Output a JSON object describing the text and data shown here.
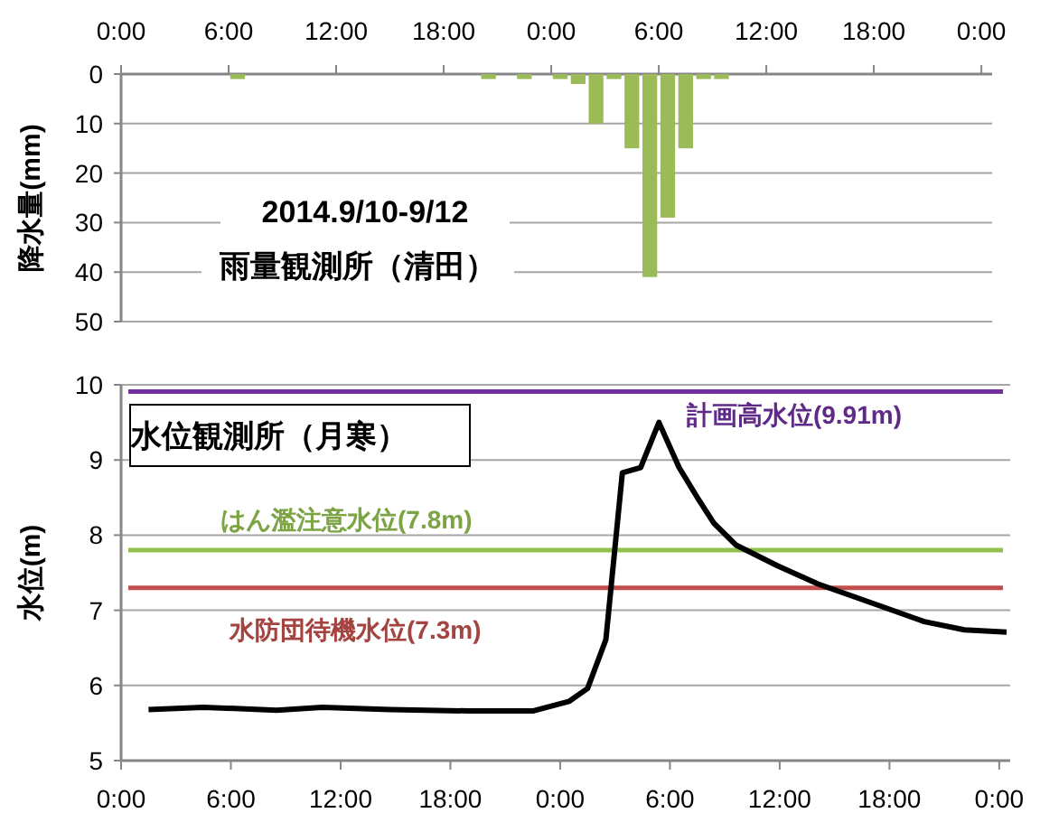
{
  "chart_data": [
    {
      "type": "bar",
      "ylabel": "降水量(mm)",
      "x": [
        "2014-09-10T06:30",
        "2014-09-10T20:30",
        "2014-09-10T22:30",
        "2014-09-11T00:30",
        "2014-09-11T01:30",
        "2014-09-11T02:30",
        "2014-09-11T03:30",
        "2014-09-11T04:30",
        "2014-09-11T05:30",
        "2014-09-11T06:30",
        "2014-09-11T07:30",
        "2014-09-11T08:30",
        "2014-09-11T09:30"
      ],
      "values": [
        1,
        1,
        1,
        1,
        2,
        10,
        1,
        15,
        41,
        29,
        15,
        1,
        1
      ],
      "color": "#9bbb59",
      "xlim": [
        "2014-09-10T00:00",
        "2014-09-12T00:36"
      ],
      "xticks": [
        {
          "value": "2014-09-10T00:00",
          "label": "0:00"
        },
        {
          "value": "2014-09-10T06:00",
          "label": "6:00"
        },
        {
          "value": "2014-09-10T12:00",
          "label": "12:00"
        },
        {
          "value": "2014-09-10T18:00",
          "label": "18:00"
        },
        {
          "value": "2014-09-11T00:00",
          "label": "0:00"
        },
        {
          "value": "2014-09-11T06:00",
          "label": "6:00"
        },
        {
          "value": "2014-09-11T12:00",
          "label": "12:00"
        },
        {
          "value": "2014-09-11T18:00",
          "label": "18:00"
        },
        {
          "value": "2014-09-12T00:00",
          "label": "0:00"
        }
      ],
      "ylim": [
        50,
        0
      ],
      "yticks": [
        0,
        10,
        20,
        30,
        40,
        50
      ],
      "grid": "y",
      "annotations": [
        "2014.9/10-9/12",
        "雨量観測所（清田）"
      ]
    },
    {
      "type": "line",
      "ylabel": "水位(m)",
      "series": [
        {
          "color": "#000000",
          "x": [
            "2014-09-10T01:30",
            "2014-09-10T04:30",
            "2014-09-10T08:30",
            "2014-09-10T11:00",
            "2014-09-10T14:42",
            "2014-09-10T19:06",
            "2014-09-10T22:30",
            "2014-09-11T00:30",
            "2014-09-11T01:30",
            "2014-09-11T02:30",
            "2014-09-11T03:24",
            "2014-09-11T04:24",
            "2014-09-11T05:24",
            "2014-09-11T06:30",
            "2014-09-11T07:30",
            "2014-09-11T08:24",
            "2014-09-11T09:36",
            "2014-09-11T11:54",
            "2014-09-11T14:06",
            "2014-09-11T17:00",
            "2014-09-11T19:54",
            "2014-09-11T22:06",
            "2014-09-12T00:24"
          ],
          "values": [
            5.68,
            5.71,
            5.67,
            5.71,
            5.68,
            5.66,
            5.66,
            5.79,
            5.96,
            6.61,
            8.83,
            8.9,
            9.5,
            8.9,
            8.5,
            8.16,
            7.87,
            7.59,
            7.35,
            7.1,
            6.85,
            6.74,
            6.71
          ]
        }
      ],
      "xlim": [
        "2014-09-10T00:00",
        "2014-09-12T00:36"
      ],
      "xticks": [
        {
          "value": "2014-09-10T00:00",
          "label": "0:00"
        },
        {
          "value": "2014-09-10T06:00",
          "label": "6:00"
        },
        {
          "value": "2014-09-10T12:00",
          "label": "12:00"
        },
        {
          "value": "2014-09-10T18:00",
          "label": "18:00"
        },
        {
          "value": "2014-09-11T00:00",
          "label": "0:00"
        },
        {
          "value": "2014-09-11T06:00",
          "label": "6:00"
        },
        {
          "value": "2014-09-11T12:00",
          "label": "12:00"
        },
        {
          "value": "2014-09-11T18:00",
          "label": "18:00"
        },
        {
          "value": "2014-09-12T00:00",
          "label": "0:00"
        }
      ],
      "ylim": [
        5,
        10
      ],
      "yticks": [
        5,
        6,
        7,
        8,
        9,
        10
      ],
      "grid": "y",
      "ref_lines": [
        {
          "axis": "y",
          "value": 9.91,
          "label": "計画高水位(9.91m)",
          "color": "#7030a0"
        },
        {
          "axis": "y",
          "value": 7.8,
          "label": "はん濫注意水位(7.8m)",
          "color": "#92c050"
        },
        {
          "axis": "y",
          "value": 7.3,
          "label": "水防団待機水位(7.3m)",
          "color": "#c0504d"
        }
      ],
      "annotations": [
        "水位観測所（月寒）"
      ]
    }
  ]
}
